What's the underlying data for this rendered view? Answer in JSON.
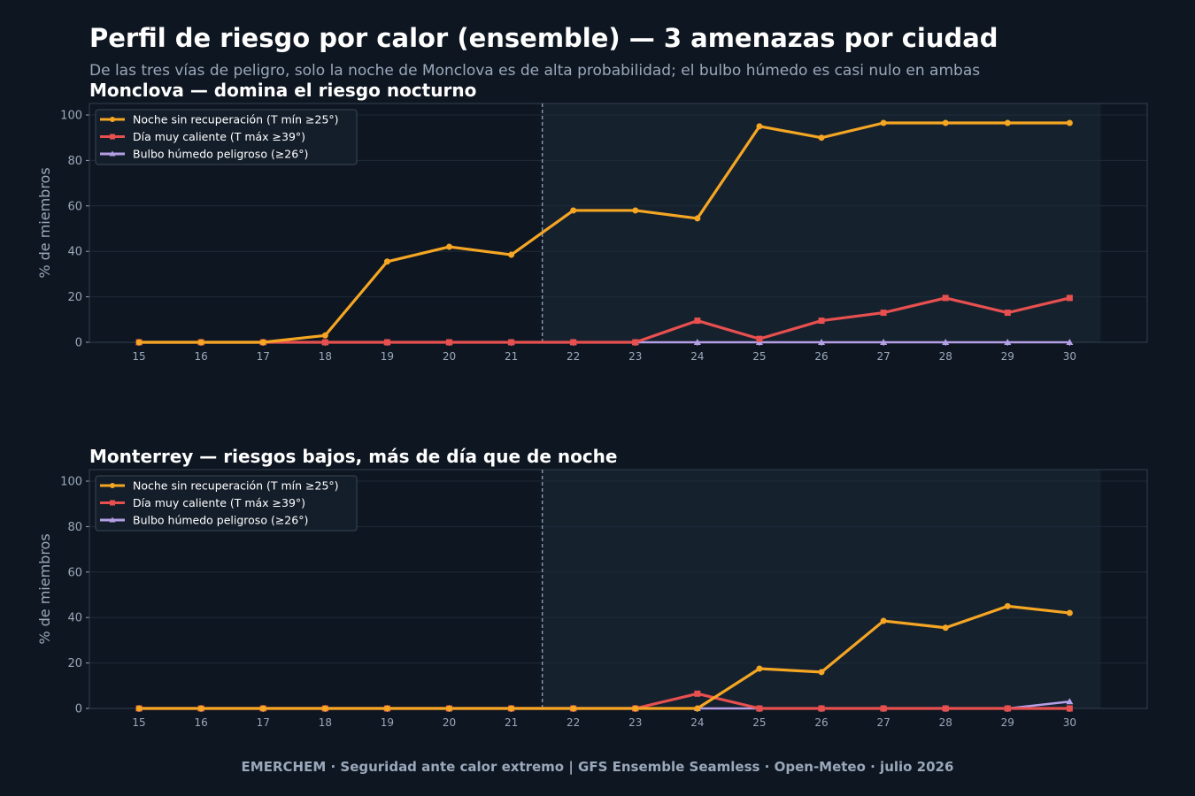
{
  "header": {
    "title": "Perfil de riesgo por calor (ensemble) — 3 amenazas por ciudad",
    "subtitle": "De las tres vías de peligro, solo la noche de Monclova es de alta probabilidad; el bulbo húmedo es casi nulo en ambas"
  },
  "footer": {
    "text": "EMERCHEM · Seguridad ante calor extremo  |  GFS Ensemble Seamless · Open-Meteo · julio 2026"
  },
  "colors": {
    "background": "#0e1621",
    "forecast_shade": "#16212e",
    "grid": "#1e2b38",
    "tick_text": "#9aa8bb",
    "noche": "#f5a623",
    "dia": "#e8504f",
    "bulbo": "#b49fe6",
    "divider": "#8a9bb0"
  },
  "chart_data": [
    {
      "type": "line",
      "title": "Monclova — domina el riesgo nocturno",
      "xlabel": "",
      "ylabel": "% de miembros",
      "x": [
        15,
        16,
        17,
        18,
        19,
        20,
        21,
        22,
        23,
        24,
        25,
        26,
        27,
        28,
        29,
        30
      ],
      "ylim": [
        0,
        100
      ],
      "yticks": [
        0,
        20,
        40,
        60,
        80,
        100
      ],
      "divider_x": 21.5,
      "forecast_region": [
        21.5,
        30.5
      ],
      "legend": "top-left",
      "grid": true,
      "series": [
        {
          "name": "Noche sin recuperación (T mín ≥25°)",
          "color_key": "noche",
          "marker": "circle",
          "values": [
            0,
            0,
            0,
            3,
            35.5,
            42,
            38.5,
            58,
            58,
            54.5,
            95,
            90,
            96.5,
            96.5,
            96.5,
            96.5
          ]
        },
        {
          "name": "Día muy caliente (T máx ≥39°)",
          "color_key": "dia",
          "marker": "square",
          "values": [
            0,
            0,
            0,
            0,
            0,
            0,
            0,
            0,
            0,
            9.5,
            1.5,
            9.5,
            13,
            19.5,
            13,
            19.5
          ]
        },
        {
          "name": "Bulbo húmedo peligroso (≥26°)",
          "color_key": "bulbo",
          "marker": "triangle",
          "values": [
            0,
            0,
            0,
            0,
            0,
            0,
            0,
            0,
            0,
            0,
            0,
            0,
            0,
            0,
            0,
            0
          ]
        }
      ]
    },
    {
      "type": "line",
      "title": "Monterrey — riesgos bajos, más de día que de noche",
      "xlabel": "",
      "ylabel": "% de miembros",
      "x": [
        15,
        16,
        17,
        18,
        19,
        20,
        21,
        22,
        23,
        24,
        25,
        26,
        27,
        28,
        29,
        30
      ],
      "ylim": [
        0,
        100
      ],
      "yticks": [
        0,
        20,
        40,
        60,
        80,
        100
      ],
      "divider_x": 21.5,
      "forecast_region": [
        21.5,
        30.5
      ],
      "legend": "top-left",
      "grid": true,
      "series": [
        {
          "name": "Noche sin recuperación (T mín ≥25°)",
          "color_key": "noche",
          "marker": "circle",
          "values": [
            0,
            0,
            0,
            0,
            0,
            0,
            0,
            0,
            0,
            0,
            17.5,
            16,
            38.5,
            35.5,
            45,
            42
          ]
        },
        {
          "name": "Día muy caliente (T máx ≥39°)",
          "color_key": "dia",
          "marker": "square",
          "values": [
            0,
            0,
            0,
            0,
            0,
            0,
            0,
            0,
            0,
            6.5,
            0,
            0,
            0,
            0,
            0,
            0
          ]
        },
        {
          "name": "Bulbo húmedo peligroso (≥26°)",
          "color_key": "bulbo",
          "marker": "triangle",
          "values": [
            0,
            0,
            0,
            0,
            0,
            0,
            0,
            0,
            0,
            0,
            0,
            0,
            0,
            0,
            0,
            3
          ]
        }
      ]
    }
  ]
}
